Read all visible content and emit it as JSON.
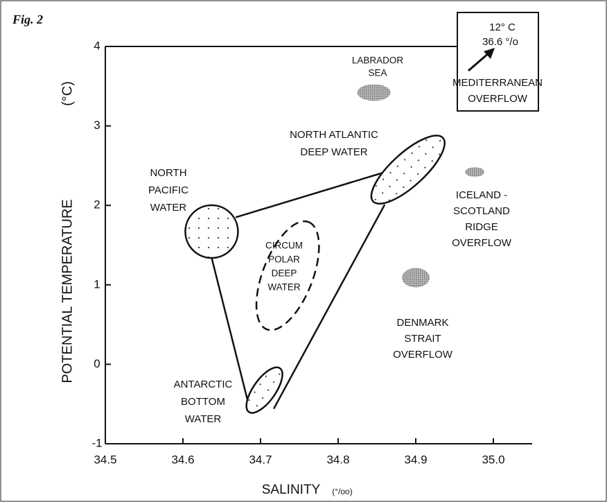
{
  "chart_data": {
    "type": "ts-diagram",
    "figure_label": "Fig. 2",
    "x_label": "SALINITY",
    "x_unit": "(°/oo)",
    "y_label": "POTENTIAL TEMPERATURE",
    "y_unit": "(°C)",
    "xlim": [
      34.5,
      35.05
    ],
    "ylim": [
      -1,
      4
    ],
    "xticks": [
      34.5,
      34.6,
      34.7,
      34.8,
      34.9,
      {
        "value": 35,
        "label": "35.0"
      }
    ],
    "yticks": [
      -1,
      0,
      1,
      2,
      3,
      4
    ],
    "water_masses": [
      {
        "label": [
          "LABRADOR",
          "SEA"
        ],
        "style": "shaded",
        "x": [
          34.846
        ],
        "y": [
          3.42
        ]
      },
      {
        "label": [
          "NORTH  ATLANTIC",
          "DEEP WATER"
        ],
        "style": "dotted",
        "x": [
          34.845,
          34.935
        ],
        "y": [
          2.05,
          2.85
        ]
      },
      {
        "label": [
          "NORTH",
          "PACIFIC",
          "WATER"
        ],
        "style": "dotted",
        "x": [
          34.637
        ],
        "y": [
          1.67
        ]
      },
      {
        "label": [
          "CIRCUM",
          "POLAR",
          "DEEP",
          "WATER"
        ],
        "style": "dashed",
        "x": [
          34.708,
          34.762
        ],
        "y": [
          0.44,
          1.79
        ]
      },
      {
        "label": [
          "ICELAND -",
          "SCOTLAND",
          "RIDGE",
          "OVERFLOW"
        ],
        "style": "shaded",
        "x": [
          34.976
        ],
        "y": [
          2.42
        ]
      },
      {
        "label": [
          "DENMARK",
          "STRAIT",
          "OVERFLOW"
        ],
        "style": "shaded",
        "x": [
          34.9
        ],
        "y": [
          1.09
        ]
      },
      {
        "label": [
          "ANTARCTIC",
          "BOTTOM",
          "WATER"
        ],
        "style": "dotted",
        "x": [
          34.685,
          34.725
        ],
        "y": [
          -0.6,
          -0.05
        ]
      }
    ],
    "mixing_lines": [
      {
        "x": [
          34.668,
          34.871
        ],
        "y": [
          1.85,
          2.45
        ]
      },
      {
        "x": [
          34.637,
          34.684
        ],
        "y": [
          1.34,
          -0.48
        ]
      },
      {
        "x": [
          34.86,
          34.717
        ],
        "y": [
          2.01,
          -0.56
        ]
      }
    ],
    "inset": {
      "lines": [
        "12° C",
        "36.6 °/o"
      ],
      "label": [
        "MEDITERRANEAN",
        "OVERFLOW"
      ]
    }
  }
}
